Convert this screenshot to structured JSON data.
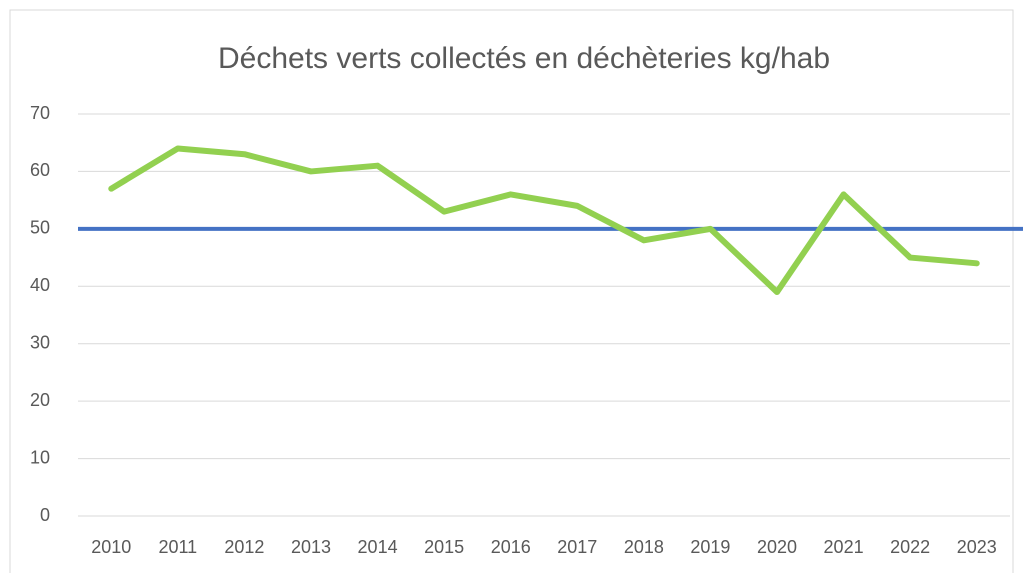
{
  "chart_data": {
    "type": "line",
    "title": "Déchets verts collectés en déchèteries kg/hab",
    "categories": [
      "2010",
      "2011",
      "2012",
      "2013",
      "2014",
      "2015",
      "2016",
      "2017",
      "2018",
      "2019",
      "2020",
      "2021",
      "2022",
      "2023"
    ],
    "series": [
      {
        "color": "#92d050",
        "values": [
          57,
          64,
          63,
          60,
          61,
          53,
          56,
          54,
          48,
          50,
          39,
          56,
          45,
          44
        ]
      }
    ],
    "reference_line": {
      "value": 50,
      "color": "#4472c4"
    },
    "ylim": [
      0,
      70
    ],
    "yticks": [
      0,
      10,
      20,
      30,
      40,
      50,
      60,
      70
    ],
    "grid": true
  }
}
